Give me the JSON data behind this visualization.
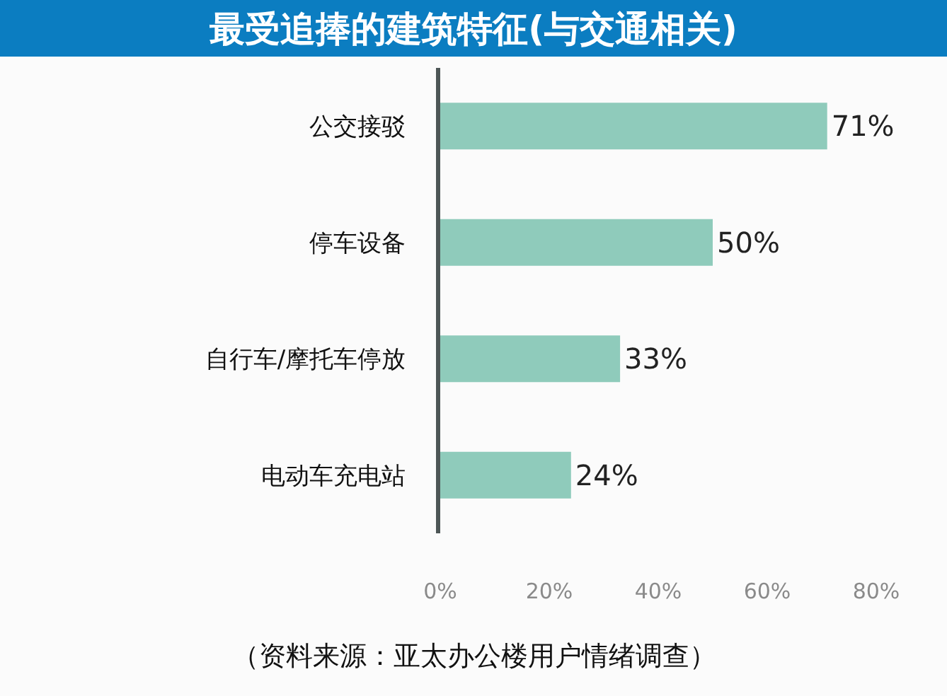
{
  "chart_data": {
    "type": "bar",
    "orientation": "horizontal",
    "title": "最受追捧的建筑特征(与交通相关)",
    "categories": [
      "公交接驳",
      "停车设备",
      "自行车/摩托车停放",
      "电动车充电站"
    ],
    "values": [
      71,
      50,
      33,
      24
    ],
    "color": "#8fcbbb",
    "value_labels": [
      "71%",
      "50%",
      "33%",
      "24%"
    ],
    "xlim": [
      0,
      80
    ],
    "xticks": [
      {
        "value": 0,
        "label": "0%"
      },
      {
        "value": 20,
        "label": "20%"
      },
      {
        "value": 40,
        "label": "40%"
      },
      {
        "value": 60,
        "label": "60%"
      },
      {
        "value": 80,
        "label": "80%"
      }
    ],
    "annotations": [
      "（资料来源：亚太办公楼用户情绪调查）"
    ]
  }
}
